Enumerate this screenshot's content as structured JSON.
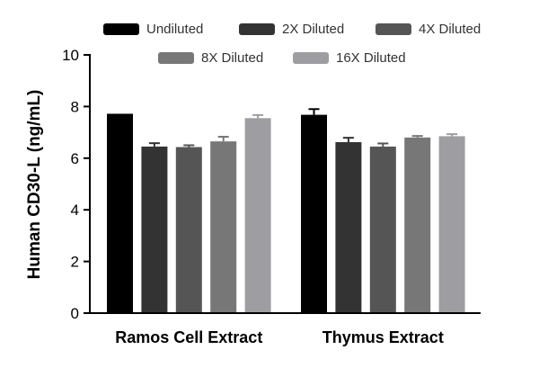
{
  "chart_data": {
    "type": "bar",
    "title": "",
    "xlabel": "",
    "ylabel": "Human CD30-L (ng/mL)",
    "ylim": [
      0,
      10
    ],
    "yticks": [
      "0",
      "2",
      "4",
      "6",
      "8",
      "10"
    ],
    "categories": [
      "Ramos Cell Extract",
      "Thymus Extract"
    ],
    "series": [
      {
        "name": "Undiluted",
        "color": "#000000",
        "values": [
          7.72,
          7.68
        ],
        "errors": [
          0.0,
          0.22
        ]
      },
      {
        "name": "2X Diluted",
        "color": "#333333",
        "values": [
          6.45,
          6.62
        ],
        "errors": [
          0.13,
          0.17
        ]
      },
      {
        "name": "4X Diluted",
        "color": "#555555",
        "values": [
          6.43,
          6.45
        ],
        "errors": [
          0.07,
          0.12
        ]
      },
      {
        "name": "8X Diluted",
        "color": "#777777",
        "values": [
          6.65,
          6.8
        ],
        "errors": [
          0.18,
          0.06
        ]
      },
      {
        "name": "16X Diluted",
        "color": "#9e9ea2",
        "values": [
          7.55,
          6.85
        ],
        "errors": [
          0.12,
          0.08
        ]
      }
    ],
    "legend_position": "top",
    "grid": false
  }
}
